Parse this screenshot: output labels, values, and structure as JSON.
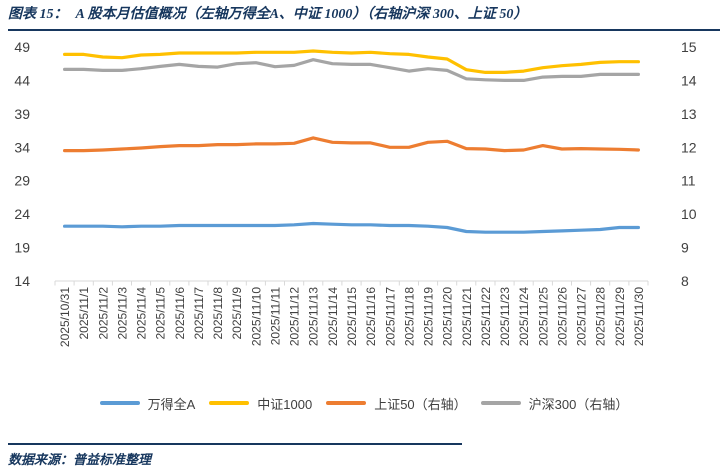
{
  "header": {
    "label": "图表 15：",
    "title": "A 股本月估值概况（左轴万得全A、中证 1000）（右轴沪深 300、上证 50）"
  },
  "footer": {
    "source": "数据来源：普益标准整理"
  },
  "colors": {
    "title_navy": "#17375E",
    "axis_text": "#404040",
    "axis_line": "#D9D9D9",
    "blue": "#5B9BD5",
    "yellow": "#FFC000",
    "orange": "#ED7D31",
    "gray": "#A5A5A5"
  },
  "chart_data": {
    "type": "line",
    "grid": false,
    "legend_position": "bottom",
    "axis_color": "#D9D9D9",
    "x": [
      "2025/10/31",
      "2025/11/1",
      "2025/11/2",
      "2025/11/3",
      "2025/11/4",
      "2025/11/5",
      "2025/11/6",
      "2025/11/7",
      "2025/11/8",
      "2025/11/9",
      "2025/11/10",
      "2025/11/11",
      "2025/11/12",
      "2025/11/13",
      "2025/11/14",
      "2025/11/15",
      "2025/11/16",
      "2025/11/17",
      "2025/11/18",
      "2025/11/19",
      "2025/11/20",
      "2025/11/21",
      "2025/11/22",
      "2025/11/23",
      "2025/11/24",
      "2025/11/25",
      "2025/11/26",
      "2025/11/27",
      "2025/11/28",
      "2025/11/29",
      "2025/11/30"
    ],
    "left_axis": {
      "min": 14,
      "max": 49,
      "ticks": [
        14,
        19,
        24,
        29,
        34,
        39,
        44,
        49
      ]
    },
    "right_axis": {
      "min": 8,
      "max": 15,
      "ticks": [
        8,
        9,
        10,
        11,
        12,
        13,
        14,
        15
      ]
    },
    "series": [
      {
        "name": "万得全A",
        "axis": "left",
        "color": "#5B9BD5",
        "values": [
          22.2,
          22.2,
          22.2,
          22.1,
          22.2,
          22.2,
          22.3,
          22.3,
          22.3,
          22.3,
          22.3,
          22.3,
          22.4,
          22.6,
          22.5,
          22.4,
          22.4,
          22.3,
          22.3,
          22.2,
          22.0,
          21.4,
          21.3,
          21.3,
          21.3,
          21.4,
          21.5,
          21.6,
          21.7,
          22.0,
          22.0
        ]
      },
      {
        "name": "中证1000",
        "axis": "left",
        "color": "#FFC000",
        "values": [
          47.9,
          47.9,
          47.5,
          47.4,
          47.8,
          47.9,
          48.1,
          48.1,
          48.1,
          48.1,
          48.2,
          48.2,
          48.2,
          48.4,
          48.2,
          48.1,
          48.2,
          48.0,
          47.9,
          47.5,
          47.2,
          45.6,
          45.2,
          45.2,
          45.4,
          45.9,
          46.2,
          46.4,
          46.7,
          46.8,
          46.8
        ]
      },
      {
        "name": "上证50（右轴）",
        "axis": "right",
        "color": "#ED7D31",
        "values": [
          11.9,
          11.9,
          11.92,
          11.95,
          11.98,
          12.02,
          12.05,
          12.05,
          12.08,
          12.08,
          12.1,
          12.1,
          12.12,
          12.28,
          12.15,
          12.13,
          12.13,
          12.0,
          12.0,
          12.15,
          12.18,
          11.96,
          11.95,
          11.9,
          11.92,
          12.05,
          11.95,
          11.96,
          11.95,
          11.94,
          11.92
        ]
      },
      {
        "name": "沪深300（右轴）",
        "axis": "right",
        "color": "#A5A5A5",
        "values": [
          14.33,
          14.33,
          14.3,
          14.3,
          14.35,
          14.42,
          14.48,
          14.42,
          14.4,
          14.5,
          14.53,
          14.41,
          14.45,
          14.62,
          14.5,
          14.48,
          14.48,
          14.38,
          14.28,
          14.35,
          14.3,
          14.05,
          14.02,
          14.0,
          14.0,
          14.1,
          14.12,
          14.12,
          14.18,
          14.18,
          14.18
        ]
      }
    ]
  }
}
